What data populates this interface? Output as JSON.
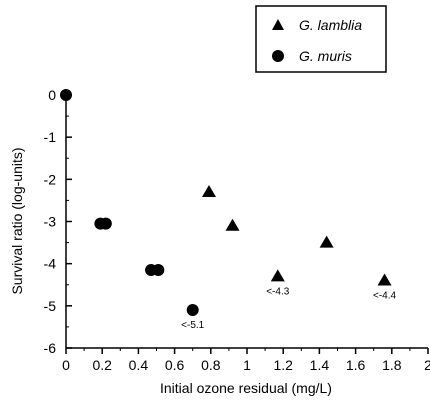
{
  "chart_data": {
    "type": "scatter",
    "xlabel": "Initial ozone residual (mg/L)",
    "ylabel": "Survival ratio (log-units)",
    "xlim": [
      0,
      2
    ],
    "ylim": [
      -6,
      0
    ],
    "xticks": [
      0,
      0.2,
      0.4,
      0.6,
      0.8,
      1,
      1.2,
      1.4,
      1.6,
      1.8,
      2
    ],
    "xtick_labels": [
      "0",
      "0.2",
      "0.4",
      "0.6",
      "0.8",
      "1",
      "1.2",
      "1.4",
      "1.6",
      "1.8",
      "2"
    ],
    "yticks": [
      0,
      -1,
      -2,
      -3,
      -4,
      -5,
      -6
    ],
    "ytick_labels": [
      "0",
      "-1",
      "-2",
      "-3",
      "-4",
      "-5",
      "-6"
    ],
    "grid": false,
    "legend_position": "top-right",
    "series": [
      {
        "name": "G. lamblia",
        "marker": "triangle",
        "color": "#000000",
        "points": [
          {
            "x": 0.79,
            "y": -2.3
          },
          {
            "x": 0.92,
            "y": -3.1
          },
          {
            "x": 1.17,
            "y": -4.3
          },
          {
            "x": 1.44,
            "y": -3.5
          },
          {
            "x": 1.76,
            "y": -4.4
          }
        ]
      },
      {
        "name": "G. muris",
        "marker": "circle",
        "color": "#000000",
        "points": [
          {
            "x": 0.0,
            "y": 0.0
          },
          {
            "x": 0.19,
            "y": -3.05
          },
          {
            "x": 0.22,
            "y": -3.05
          },
          {
            "x": 0.47,
            "y": -4.15
          },
          {
            "x": 0.51,
            "y": -4.15
          },
          {
            "x": 0.7,
            "y": -5.1
          }
        ]
      }
    ],
    "annotations": [
      {
        "text": "<-4.3",
        "x": 1.17,
        "y": -4.3
      },
      {
        "text": "<-4.4",
        "x": 1.76,
        "y": -4.4
      },
      {
        "text": "<-5.1",
        "x": 0.7,
        "y": -5.1
      }
    ]
  }
}
